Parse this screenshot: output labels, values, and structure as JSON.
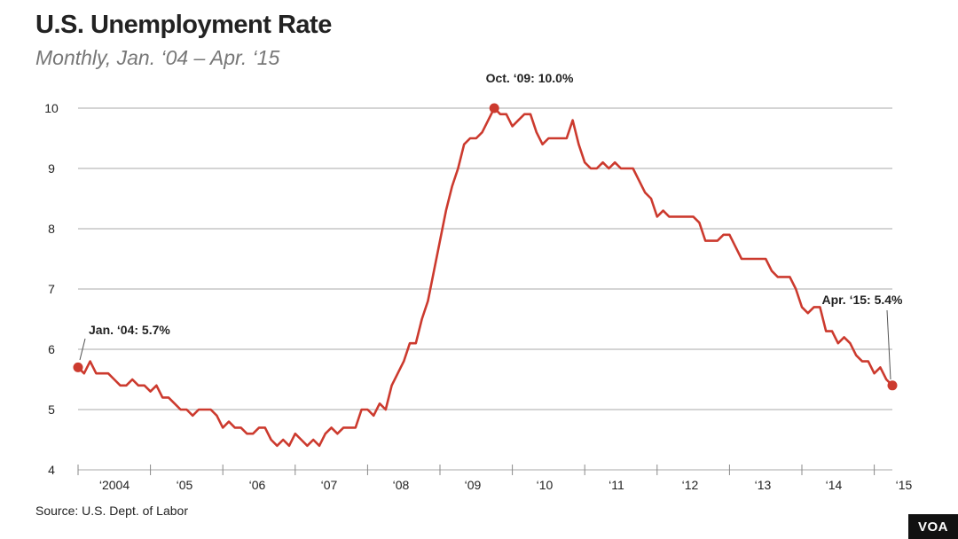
{
  "chart_data": {
    "type": "line",
    "title": "U.S. Unemployment Rate",
    "subtitle": "Monthly, Jan. ‘04 – Apr. ‘15",
    "source": "Source: U.S. Dept. of Labor",
    "ylim": [
      4,
      10
    ],
    "yticks": [
      "4",
      "5",
      "6",
      "7",
      "8",
      "9",
      "10"
    ],
    "xtick_labels": [
      "‘2004",
      "‘05",
      "‘06",
      "‘07",
      "‘08",
      "‘09",
      "‘10",
      "‘11",
      "‘12",
      "‘13",
      "‘14",
      "‘15"
    ],
    "grid": true,
    "line_color": "#cc3a2e",
    "series": [
      {
        "start": "2004-01",
        "values": [
          5.7,
          5.6,
          5.8,
          5.6,
          5.6,
          5.6,
          5.5,
          5.4,
          5.4,
          5.5,
          5.4,
          5.4,
          5.3,
          5.4,
          5.2,
          5.2,
          5.1,
          5.0,
          5.0,
          4.9,
          5.0,
          5.0,
          5.0,
          4.9,
          4.7,
          4.8,
          4.7,
          4.7,
          4.6,
          4.6,
          4.7,
          4.7,
          4.5,
          4.4,
          4.5,
          4.4,
          4.6,
          4.5,
          4.4,
          4.5,
          4.4,
          4.6,
          4.7,
          4.6,
          4.7,
          4.7,
          4.7,
          5.0,
          5.0,
          4.9,
          5.1,
          5.0,
          5.4,
          5.6,
          5.8,
          6.1,
          6.1,
          6.5,
          6.8,
          7.3,
          7.8,
          8.3,
          8.7,
          9.0,
          9.4,
          9.5,
          9.5,
          9.6,
          9.8,
          10.0,
          9.9,
          9.9,
          9.7,
          9.8,
          9.9,
          9.9,
          9.6,
          9.4,
          9.5,
          9.5,
          9.5,
          9.5,
          9.8,
          9.4,
          9.1,
          9.0,
          9.0,
          9.1,
          9.0,
          9.1,
          9.0,
          9.0,
          9.0,
          8.8,
          8.6,
          8.5,
          8.2,
          8.3,
          8.2,
          8.2,
          8.2,
          8.2,
          8.2,
          8.1,
          7.8,
          7.8,
          7.8,
          7.9,
          7.9,
          7.7,
          7.5,
          7.5,
          7.5,
          7.5,
          7.5,
          7.3,
          7.2,
          7.2,
          7.2,
          7.0,
          6.7,
          6.6,
          6.7,
          6.7,
          6.3,
          6.3,
          6.1,
          6.2,
          6.1,
          5.9,
          5.8,
          5.8,
          5.6,
          5.7,
          5.5,
          5.4
        ]
      }
    ],
    "annotations": [
      {
        "label": "Jan. ‘04: 5.7%",
        "date": "2004-01",
        "value": 5.7
      },
      {
        "label": "Oct. ‘09: 10.0%",
        "date": "2009-10",
        "value": 10.0
      },
      {
        "label": "Apr. ‘15: 5.4%",
        "date": "2015-04",
        "value": 5.4
      }
    ]
  },
  "branding": {
    "logo": "VOA"
  }
}
